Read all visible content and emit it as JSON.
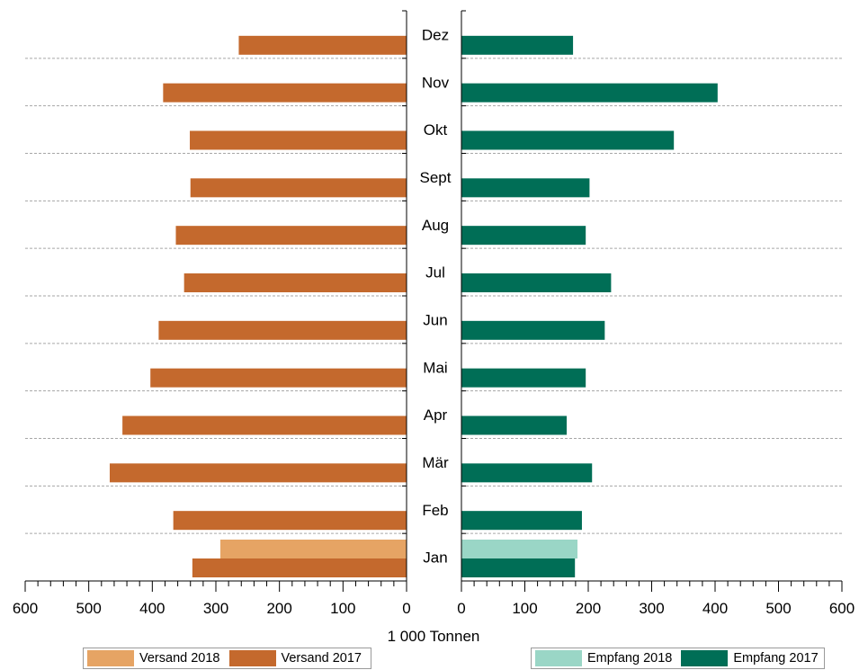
{
  "chart_data": {
    "type": "bar",
    "orientation": "horizontal",
    "layout": "butterfly",
    "categories": [
      "Jan",
      "Feb",
      "Mär",
      "Apr",
      "Mai",
      "Jun",
      "Jul",
      "Aug",
      "Sept",
      "Okt",
      "Nov",
      "Dez"
    ],
    "xlabel": "1 000 Tonnen",
    "panels": {
      "left": {
        "xlim": [
          600,
          0
        ],
        "ticks": [
          "600",
          "500",
          "400",
          "300",
          "200",
          "100",
          "0"
        ],
        "series": [
          {
            "name": "Versand 2018",
            "color": "#e6a464",
            "values": [
              293,
              null,
              null,
              null,
              null,
              null,
              null,
              null,
              null,
              null,
              null,
              null
            ]
          },
          {
            "name": "Versand 2017",
            "color": "#c4692d",
            "values": [
              337,
              367,
              467,
              447,
              403,
              390,
              350,
              363,
              340,
              341,
              383,
              264
            ]
          }
        ]
      },
      "right": {
        "xlim": [
          0,
          600
        ],
        "ticks": [
          "0",
          "100",
          "200",
          "300",
          "400",
          "500",
          "600"
        ],
        "series": [
          {
            "name": "Empfang 2018",
            "color": "#9ad6c6",
            "values": [
              183,
              null,
              null,
              null,
              null,
              null,
              null,
              null,
              null,
              null,
              null,
              null
            ]
          },
          {
            "name": "Empfang 2017",
            "color": "#006e56",
            "values": [
              179,
              190,
              206,
              166,
              196,
              226,
              236,
              196,
              202,
              335,
              404,
              176
            ]
          }
        ]
      }
    },
    "grid": "horizontal-dashed",
    "legend_placement": "bottom"
  }
}
